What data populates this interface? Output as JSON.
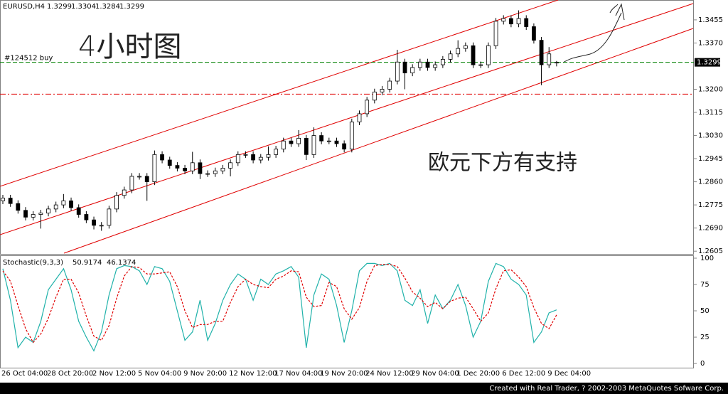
{
  "chart_data": [
    {
      "type": "candlestick",
      "title": "EURUSD,H4",
      "categories": [
        "26 Oct 04:00",
        null,
        null,
        null,
        null,
        null,
        "28 Oct 20:00",
        null,
        null,
        null,
        null,
        null,
        "2 Nov 12:00",
        null,
        null,
        null,
        null,
        null,
        "5 Nov 04:00",
        null,
        null,
        null,
        null,
        null,
        "9 Nov 20:00",
        null,
        null,
        null,
        null,
        null,
        "12 Nov 12:00",
        null,
        null,
        null,
        null,
        null,
        "17 Nov 04:00",
        null,
        null,
        null,
        null,
        null,
        "19 Nov 20:00",
        null,
        null,
        null,
        null,
        null,
        "24 Nov 12:00",
        null,
        null,
        null,
        null,
        null,
        "29 Nov 04:00",
        null,
        null,
        null,
        null,
        null,
        "1 Dec 20:00",
        null,
        null,
        null,
        null,
        null,
        "6 Dec 12:00",
        null,
        null,
        null,
        null,
        null,
        "9 Dec 04:00",
        null
      ],
      "open": [
        1.279,
        1.28,
        1.278,
        1.2755,
        1.273,
        1.274,
        1.2745,
        1.276,
        1.2775,
        1.279,
        1.2765,
        1.274,
        1.272,
        1.27,
        1.27,
        1.276,
        1.281,
        1.283,
        1.288,
        1.288,
        1.286,
        1.296,
        1.294,
        1.292,
        1.291,
        1.29,
        1.293,
        1.289,
        1.289,
        1.29,
        1.291,
        1.293,
        1.296,
        1.296,
        1.294,
        1.295,
        1.296,
        1.298,
        1.301,
        1.3,
        1.302,
        1.296,
        1.303,
        1.301,
        1.301,
        1.3,
        1.298,
        1.308,
        1.311,
        1.316,
        1.319,
        1.32,
        1.323,
        1.33,
        1.326,
        1.328,
        1.33,
        1.328,
        1.329,
        1.331,
        1.333,
        1.335,
        1.336,
        1.329,
        1.329,
        1.336,
        1.345,
        1.346,
        1.344,
        1.346,
        1.343,
        1.338,
        1.329,
        1.3299
      ],
      "high": [
        1.2812,
        1.2812,
        1.2792,
        1.2767,
        1.2752,
        1.2757,
        1.2772,
        1.2787,
        1.2815,
        1.2802,
        1.2777,
        1.2752,
        1.2732,
        1.2712,
        1.2772,
        1.2822,
        1.2842,
        1.2892,
        1.2892,
        1.2892,
        1.2975,
        1.2972,
        1.2952,
        1.2932,
        1.2922,
        1.297,
        1.2942,
        1.2902,
        1.2912,
        1.2922,
        1.2942,
        1.2972,
        1.2972,
        1.2972,
        1.2962,
        1.299,
        1.2992,
        1.3022,
        1.3022,
        1.305,
        1.3032,
        1.306,
        1.3042,
        1.3022,
        1.3022,
        1.3012,
        1.3092,
        1.3122,
        1.3172,
        1.3202,
        1.3212,
        1.3242,
        1.3345,
        1.3312,
        1.3292,
        1.3312,
        1.3312,
        1.3302,
        1.3322,
        1.3342,
        1.338,
        1.3372,
        1.3372,
        1.3302,
        1.3372,
        1.3462,
        1.3472,
        1.3472,
        1.349,
        1.3472,
        1.3442,
        1.3392,
        1.3355,
        1.3304
      ],
      "low": [
        1.2778,
        1.2768,
        1.2743,
        1.2718,
        1.2718,
        1.2688,
        1.2733,
        1.2748,
        1.2763,
        1.2753,
        1.2728,
        1.2708,
        1.2685,
        1.268,
        1.2688,
        1.2748,
        1.2798,
        1.2818,
        1.2868,
        1.279,
        1.2848,
        1.2928,
        1.2908,
        1.2898,
        1.2888,
        1.2888,
        1.287,
        1.2878,
        1.2878,
        1.2888,
        1.288,
        1.2918,
        1.2948,
        1.2928,
        1.2928,
        1.2938,
        1.2948,
        1.2968,
        1.2988,
        1.2988,
        1.294,
        1.2948,
        1.2998,
        1.2998,
        1.2988,
        1.2968,
        1.2968,
        1.3068,
        1.3098,
        1.3148,
        1.3178,
        1.3188,
        1.3218,
        1.32,
        1.3248,
        1.3268,
        1.3268,
        1.3268,
        1.3278,
        1.3298,
        1.3318,
        1.3338,
        1.3278,
        1.3278,
        1.3278,
        1.3348,
        1.3438,
        1.3428,
        1.3428,
        1.3418,
        1.3368,
        1.3215,
        1.3278,
        1.3284
      ],
      "close": [
        1.28,
        1.278,
        1.2755,
        1.273,
        1.274,
        1.2745,
        1.276,
        1.2775,
        1.279,
        1.2765,
        1.274,
        1.272,
        1.27,
        1.27,
        1.276,
        1.281,
        1.283,
        1.288,
        1.288,
        1.286,
        1.296,
        1.294,
        1.292,
        1.291,
        1.29,
        1.293,
        1.289,
        1.289,
        1.29,
        1.291,
        1.293,
        1.296,
        1.296,
        1.294,
        1.295,
        1.296,
        1.298,
        1.301,
        1.3,
        1.302,
        1.296,
        1.303,
        1.301,
        1.301,
        1.3,
        1.298,
        1.308,
        1.311,
        1.316,
        1.319,
        1.32,
        1.323,
        1.33,
        1.326,
        1.328,
        1.33,
        1.328,
        1.329,
        1.331,
        1.333,
        1.335,
        1.336,
        1.329,
        1.329,
        1.336,
        1.345,
        1.346,
        1.344,
        1.346,
        1.343,
        1.338,
        1.329,
        1.333,
        1.3299
      ],
      "color": "#000000",
      "ylim": [
        1.2595,
        1.3528
      ],
      "yticks": [
        1.2605,
        {
          "value": 1.269,
          "label": "1.2690"
        },
        1.2775,
        {
          "value": 1.286,
          "label": "1.2860"
        },
        1.2945,
        {
          "value": 1.303,
          "label": "1.3030"
        },
        1.3115,
        {
          "value": 1.32,
          "label": "1.3200"
        },
        {
          "value": 1.337,
          "label": "1.3370"
        },
        1.3455
      ],
      "order_line": {
        "label": "#124512 buy",
        "value": 1.3299,
        "color": "#008000"
      },
      "stop_line": {
        "value": 1.3182,
        "color": "#e00000"
      },
      "annotations": [
        "4小时图",
        "欧元下方有支持"
      ]
    },
    {
      "type": "line",
      "title": "Stochastic(9,3,3)",
      "series": [
        {
          "color": "#20b2aa",
          "dashed": false,
          "values": [
            90,
            60,
            15,
            25,
            20,
            40,
            70,
            80,
            90,
            70,
            40,
            25,
            12,
            30,
            65,
            90,
            93,
            92,
            88,
            75,
            92,
            90,
            78,
            50,
            22,
            30,
            60,
            22,
            38,
            60,
            75,
            85,
            80,
            60,
            80,
            75,
            85,
            88,
            92,
            82,
            15,
            65,
            85,
            80,
            55,
            20,
            50,
            88,
            95,
            95,
            93,
            95,
            88,
            60,
            55,
            70,
            38,
            65,
            52,
            60,
            75,
            55,
            25,
            40,
            78,
            95,
            92,
            80,
            75,
            65,
            20,
            30,
            48,
            50.9174
          ]
        },
        {
          "color": "#e00000",
          "dashed": true,
          "values": [
            88,
            78,
            55,
            33,
            20,
            28,
            43,
            63,
            80,
            80,
            67,
            45,
            26,
            22,
            36,
            62,
            83,
            92,
            91,
            85,
            85,
            86,
            87,
            73,
            50,
            34,
            37,
            37,
            40,
            40,
            58,
            73,
            80,
            75,
            73,
            72,
            80,
            83,
            88,
            87,
            63,
            54,
            55,
            77,
            73,
            52,
            42,
            53,
            78,
            93,
            94,
            94,
            92,
            81,
            68,
            62,
            54,
            58,
            52,
            59,
            62,
            63,
            52,
            40,
            48,
            71,
            88,
            89,
            82,
            73,
            53,
            38,
            33,
            46.1374
          ]
        }
      ],
      "ylim": [
        -4,
        102.7
      ],
      "yticks": [
        0,
        25,
        50,
        75,
        100
      ]
    }
  ],
  "footer": "Created with Real Trader, ? 2002-2003 MetaQuotes Sofware Corp."
}
